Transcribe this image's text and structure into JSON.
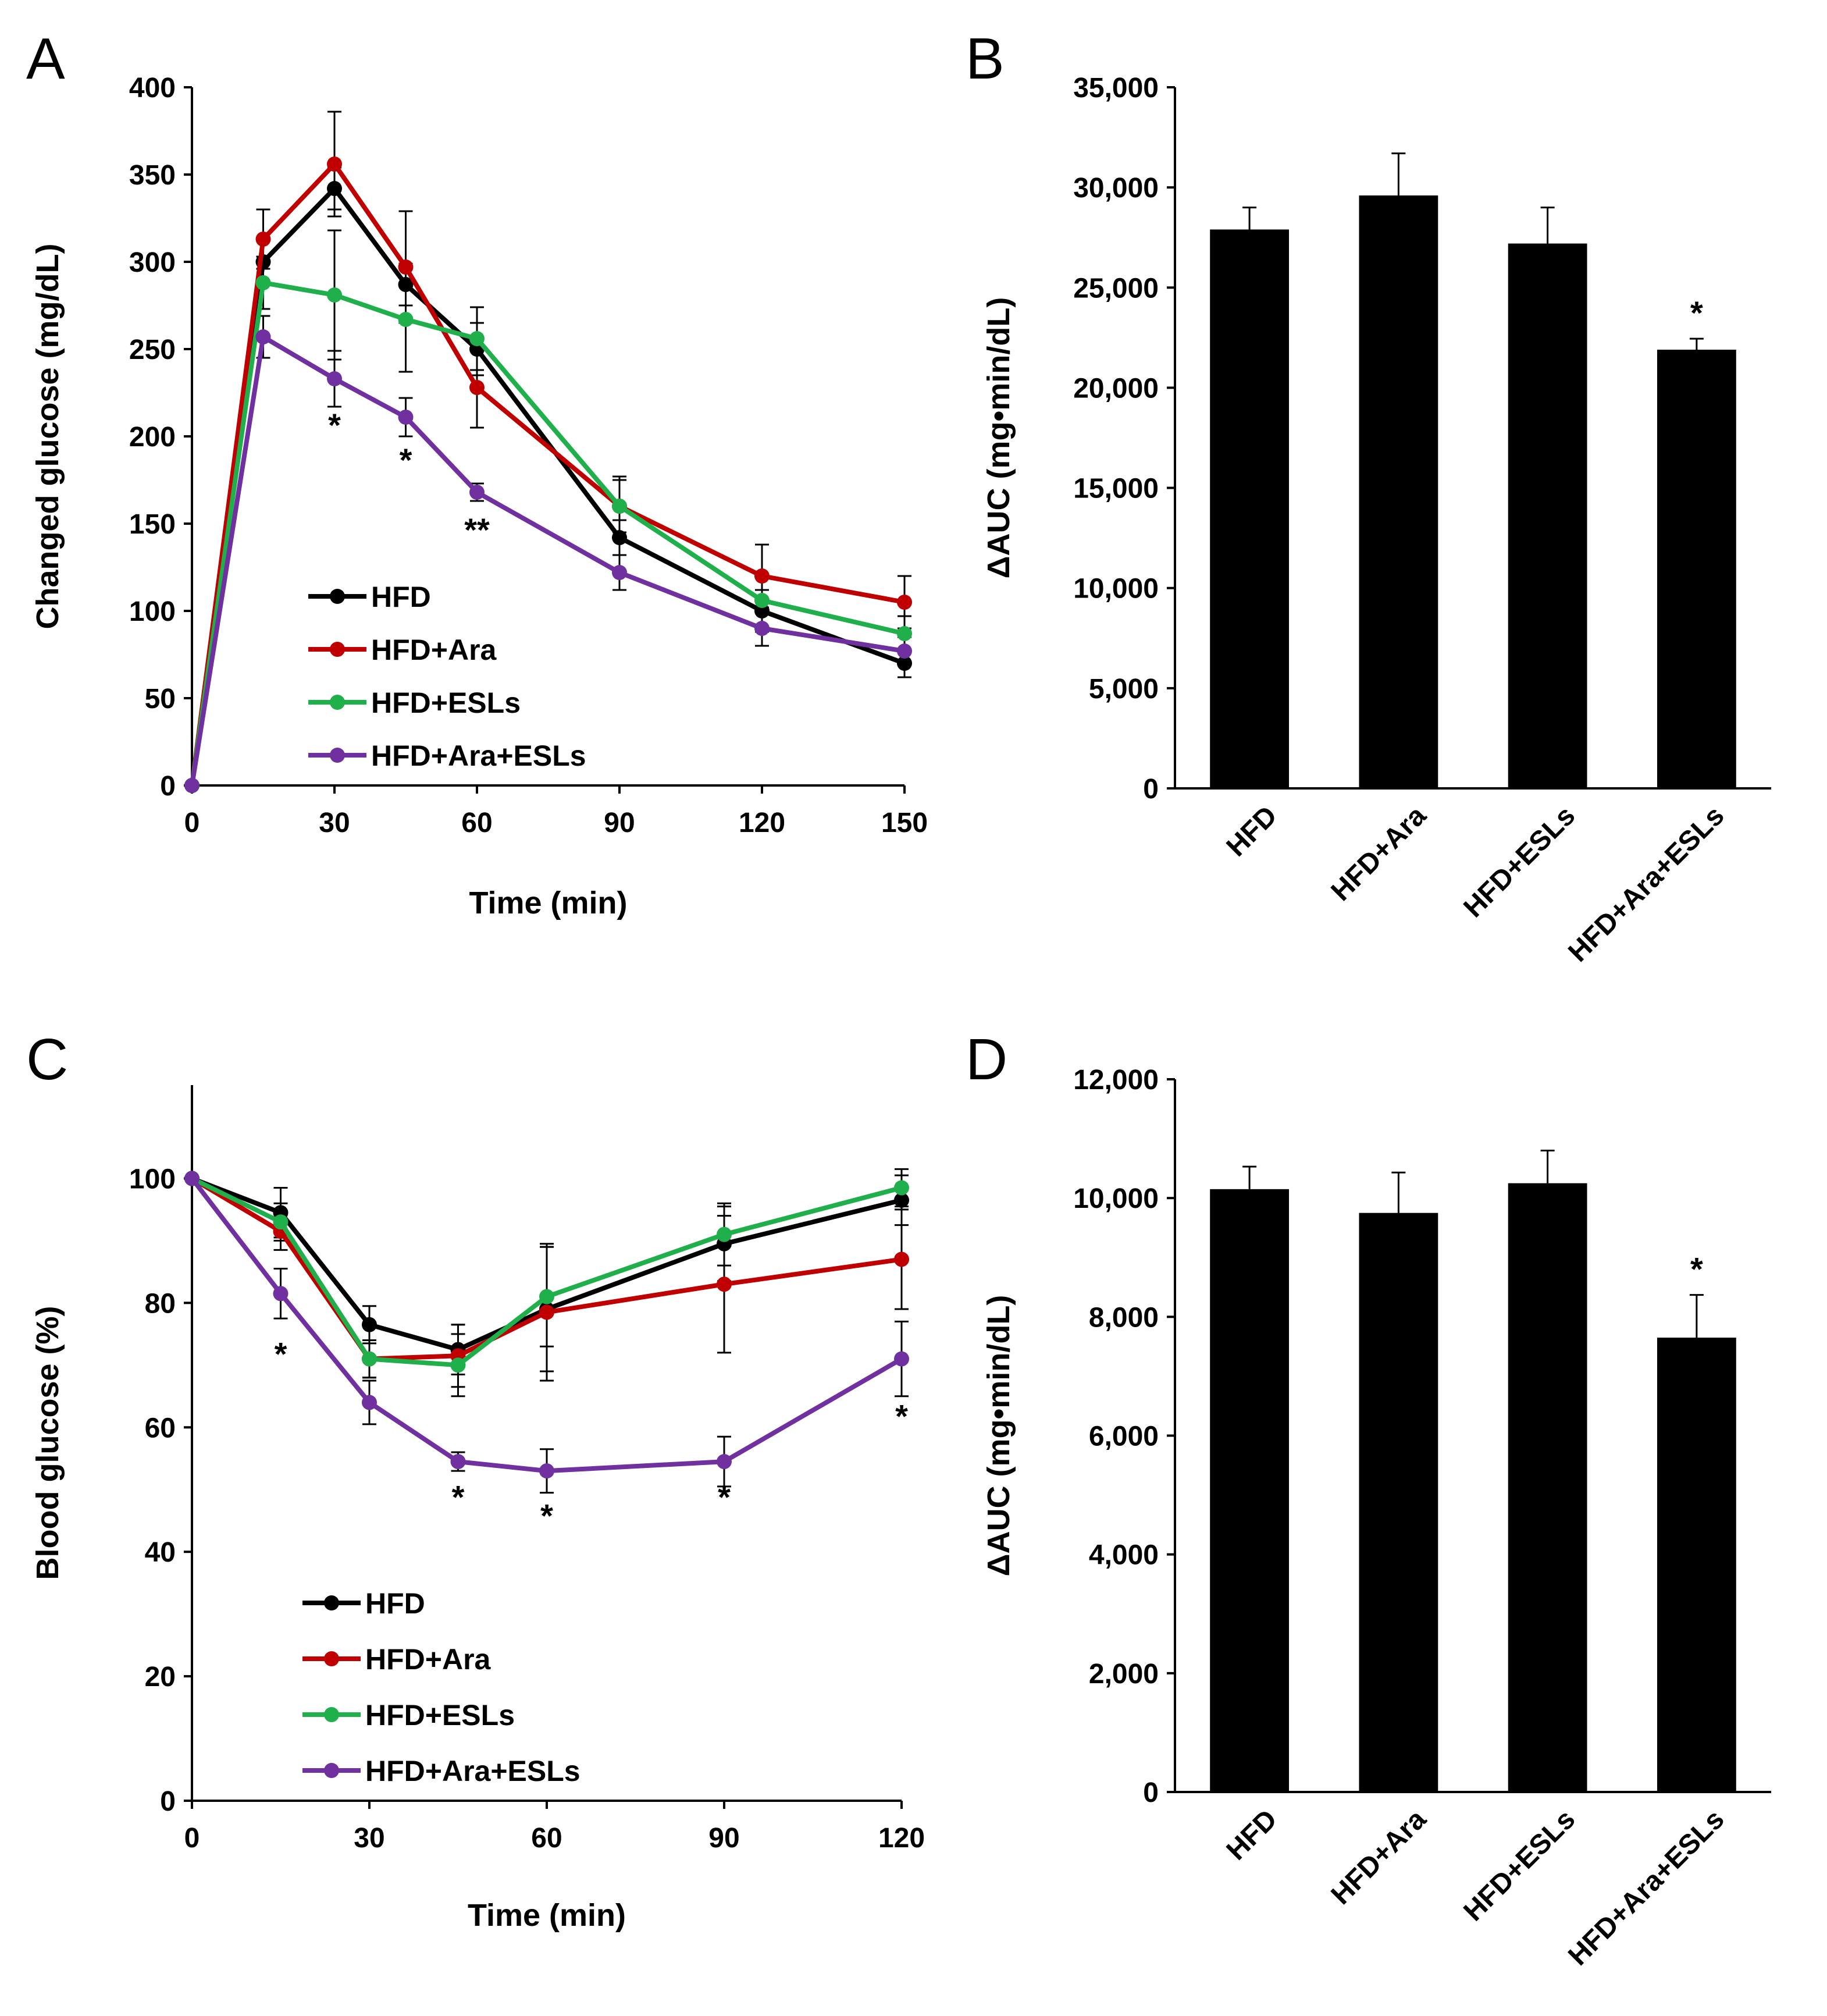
{
  "colors": {
    "HFD": "#000000",
    "HFD+Ara": "#c00000",
    "HFD+ESLs": "#1fb04b",
    "HFD+Ara+ESLs": "#7030a0",
    "bar": "#000000"
  },
  "chart_data": [
    {
      "panel": "A",
      "type": "line",
      "xlabel": "Time (min)",
      "ylabel": "Changed glucose (mg/dL)",
      "xlim": [
        0,
        150
      ],
      "ylim": [
        0,
        400
      ],
      "xticks": [
        0,
        30,
        60,
        90,
        120,
        150
      ],
      "yticks": [
        0,
        50,
        100,
        150,
        200,
        250,
        300,
        350,
        400
      ],
      "x": [
        0,
        15,
        30,
        45,
        60,
        90,
        120,
        150
      ],
      "legend": [
        "HFD",
        "HFD+Ara",
        "HFD+ESLs",
        "HFD+Ara+ESLs"
      ],
      "series": [
        {
          "name": "HFD",
          "values": [
            0,
            300,
            342,
            287,
            250,
            142,
            100,
            70
          ],
          "errors": [
            0,
            12,
            12,
            12,
            15,
            10,
            12,
            8
          ]
        },
        {
          "name": "HFD+Ara",
          "values": [
            0,
            313,
            356,
            297,
            228,
            160,
            120,
            105
          ],
          "errors": [
            0,
            17,
            30,
            32,
            23,
            17,
            18,
            15
          ]
        },
        {
          "name": "HFD+ESLs",
          "values": [
            0,
            288,
            281,
            267,
            256,
            160,
            106,
            87
          ],
          "errors": [
            0,
            15,
            37,
            30,
            18,
            15,
            15,
            10
          ]
        },
        {
          "name": "HFD+Ara+ESLs",
          "values": [
            0,
            257,
            233,
            211,
            168,
            122,
            90,
            77
          ],
          "errors": [
            0,
            12,
            16,
            11,
            5,
            10,
            10,
            8
          ]
        }
      ],
      "annotations": [
        {
          "x": 30,
          "y": 200,
          "text": "*"
        },
        {
          "x": 45,
          "y": 180,
          "text": "*"
        },
        {
          "x": 60,
          "y": 140,
          "text": "**"
        }
      ]
    },
    {
      "panel": "B",
      "type": "bar",
      "ylabel": "ΔAUC (mg•min/dL)",
      "ylim": [
        0,
        35000
      ],
      "yticks": [
        0,
        5000,
        10000,
        15000,
        20000,
        25000,
        30000,
        35000
      ],
      "ytick_labels": [
        "0",
        "5,000",
        "10,000",
        "15,000",
        "20,000",
        "25,000",
        "30,000",
        "35,000"
      ],
      "categories": [
        "HFD",
        "HFD+Ara",
        "HFD+ESLs",
        "HFD+Ara+ESLs"
      ],
      "values": [
        27900,
        29600,
        27200,
        21900
      ],
      "errors": [
        1100,
        2100,
        1800,
        550
      ],
      "annotations": [
        {
          "category": "HFD+Ara+ESLs",
          "text": "*"
        }
      ]
    },
    {
      "panel": "C",
      "type": "line",
      "xlabel": "Time (min)",
      "ylabel": "Blood glucose (%)",
      "xlim": [
        0,
        120
      ],
      "ylim": [
        0,
        115
      ],
      "xticks": [
        0,
        30,
        60,
        90,
        120
      ],
      "yticks": [
        0,
        20,
        40,
        60,
        80,
        100
      ],
      "x": [
        0,
        15,
        30,
        45,
        60,
        90,
        120
      ],
      "legend": [
        "HFD",
        "HFD+Ara",
        "HFD+ESLs",
        "HFD+Ara+ESLs"
      ],
      "series": [
        {
          "name": "HFD",
          "values": [
            100,
            94.5,
            76.5,
            72.5,
            79,
            89.5,
            96.5
          ],
          "errors": [
            0,
            4,
            3,
            4,
            10,
            6,
            4
          ]
        },
        {
          "name": "HFD+Ara",
          "values": [
            100,
            91.5,
            71,
            71.5,
            78.5,
            83,
            87
          ],
          "errors": [
            0,
            3,
            3,
            5,
            11,
            11,
            8
          ]
        },
        {
          "name": "HFD+ESLs",
          "values": [
            100,
            93,
            71,
            70,
            81,
            91,
            98.5
          ],
          "errors": [
            0,
            3,
            3,
            5,
            8,
            5,
            3
          ]
        },
        {
          "name": "HFD+Ara+ESLs",
          "values": [
            100,
            81.5,
            64,
            54.5,
            53,
            54.5,
            71
          ],
          "errors": [
            0,
            4,
            3.5,
            1.5,
            3.5,
            4,
            6
          ]
        }
      ],
      "annotations": [
        {
          "x": 15,
          "y": 70,
          "text": "*"
        },
        {
          "x": 45,
          "y": 47,
          "text": "*"
        },
        {
          "x": 60,
          "y": 44,
          "text": "*"
        },
        {
          "x": 90,
          "y": 47,
          "text": "*"
        },
        {
          "x": 120,
          "y": 60,
          "text": "*"
        }
      ]
    },
    {
      "panel": "D",
      "type": "bar",
      "ylabel": "ΔAUC (mg•min/dL)",
      "ylim": [
        0,
        12000
      ],
      "yticks": [
        0,
        2000,
        4000,
        6000,
        8000,
        10000,
        12000
      ],
      "ytick_labels": [
        "0",
        "2,000",
        "4,000",
        "6,000",
        "8,000",
        "10,000",
        "12,000"
      ],
      "categories": [
        "HFD",
        "HFD+Ara",
        "HFD+ESLs",
        "HFD+Ara+ESLs"
      ],
      "values": [
        10150,
        9750,
        10250,
        7650
      ],
      "errors": [
        380,
        680,
        550,
        720
      ],
      "annotations": [
        {
          "category": "HFD+Ara+ESLs",
          "text": "*"
        }
      ]
    }
  ]
}
